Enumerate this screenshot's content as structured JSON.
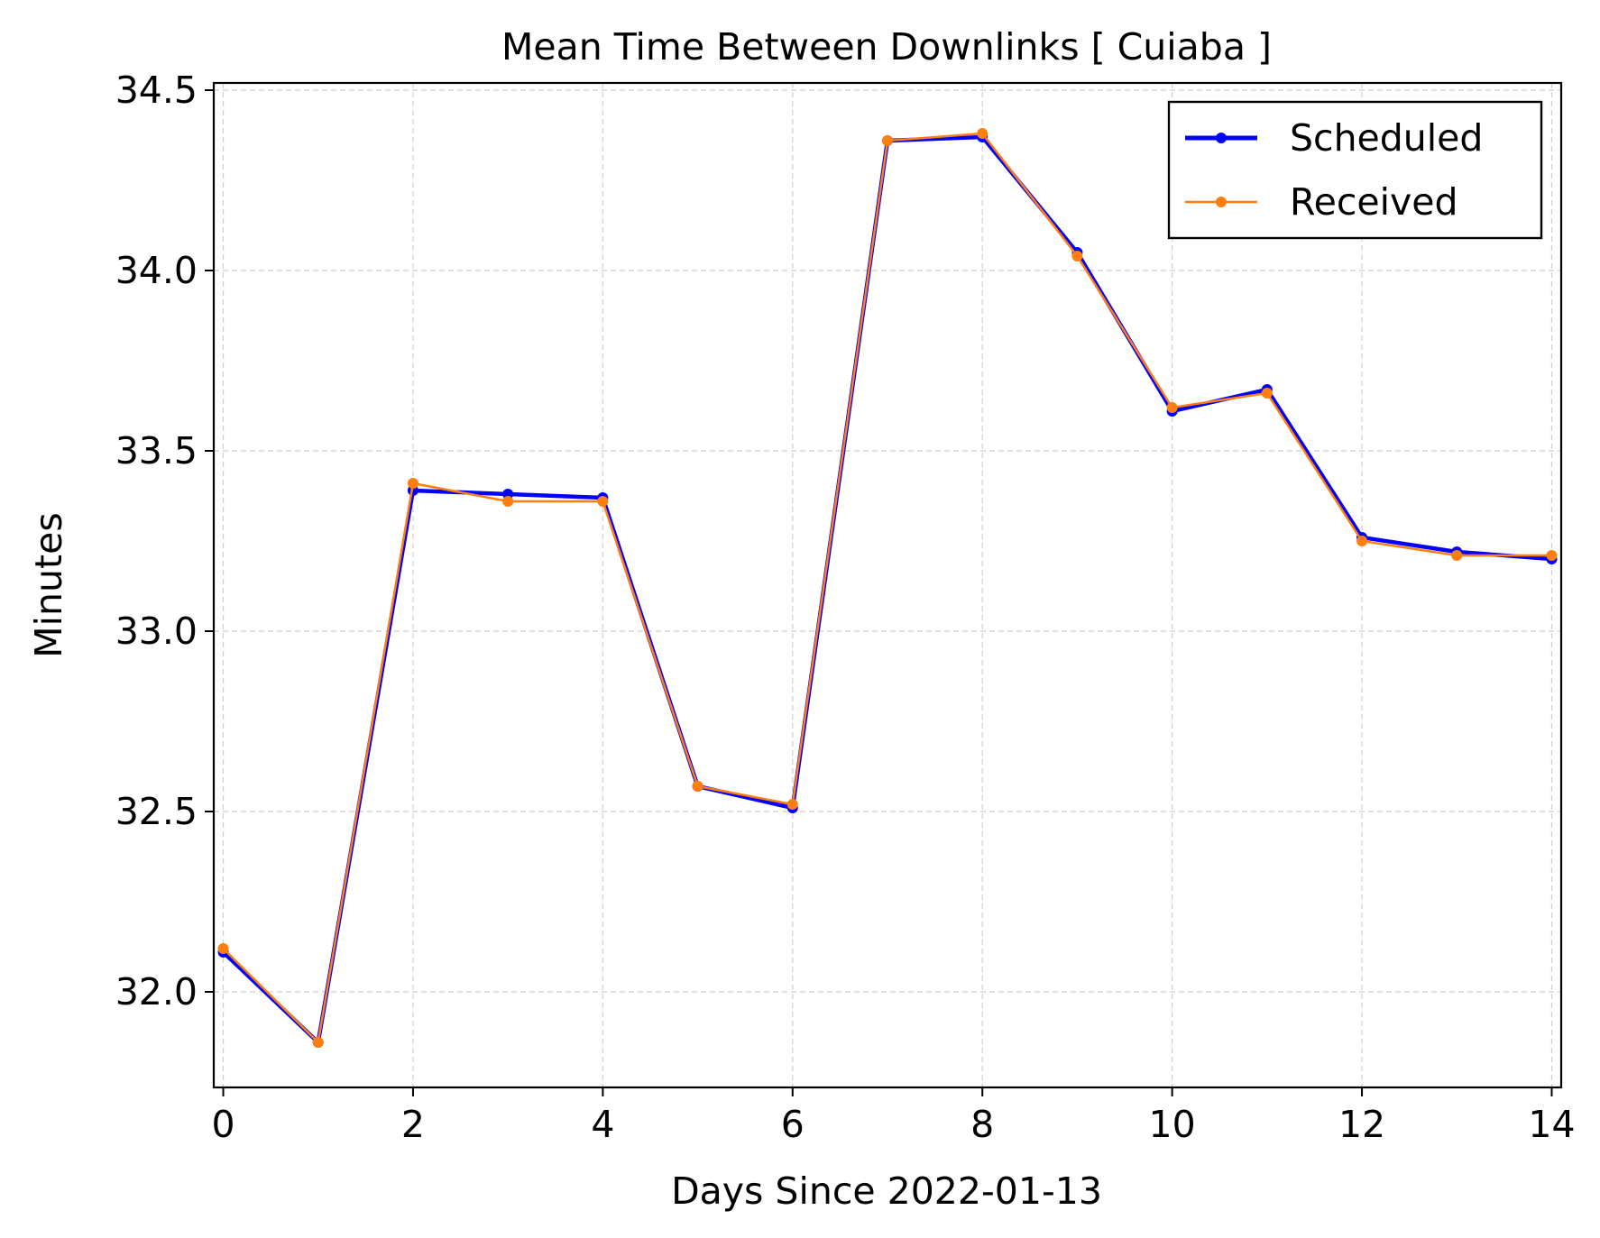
{
  "chart_data": {
    "type": "line",
    "title": "Mean Time Between Downlinks [ Cuiaba ]",
    "xlabel": "Days Since 2022-01-13",
    "ylabel": "Minutes",
    "xlim": [
      -0.1,
      14.1
    ],
    "ylim": [
      31.735,
      34.52
    ],
    "xticks": [
      0,
      2,
      4,
      6,
      8,
      10,
      12,
      14
    ],
    "xtick_labels": [
      "0",
      "2",
      "4",
      "6",
      "8",
      "10",
      "12",
      "14"
    ],
    "yticks": [
      32.0,
      32.5,
      33.0,
      33.5,
      34.0,
      34.5
    ],
    "ytick_labels": [
      "32.0",
      "32.5",
      "33.0",
      "33.5",
      "34.0",
      "34.5"
    ],
    "grid": true,
    "legend_position": "top-right",
    "x": [
      0,
      1,
      2,
      3,
      4,
      5,
      6,
      7,
      8,
      9,
      10,
      11,
      12,
      13,
      14
    ],
    "series": [
      {
        "name": "Scheduled",
        "color": "#0000ff",
        "values": [
          32.11,
          31.86,
          33.39,
          33.38,
          33.37,
          32.57,
          32.51,
          34.36,
          34.37,
          34.05,
          33.61,
          33.67,
          33.26,
          33.22,
          33.2
        ]
      },
      {
        "name": "Received",
        "color": "#ff7f0e",
        "values": [
          32.12,
          31.86,
          33.41,
          33.36,
          33.36,
          32.57,
          32.52,
          34.36,
          34.38,
          34.04,
          33.62,
          33.66,
          33.25,
          33.21,
          33.21
        ]
      }
    ]
  }
}
